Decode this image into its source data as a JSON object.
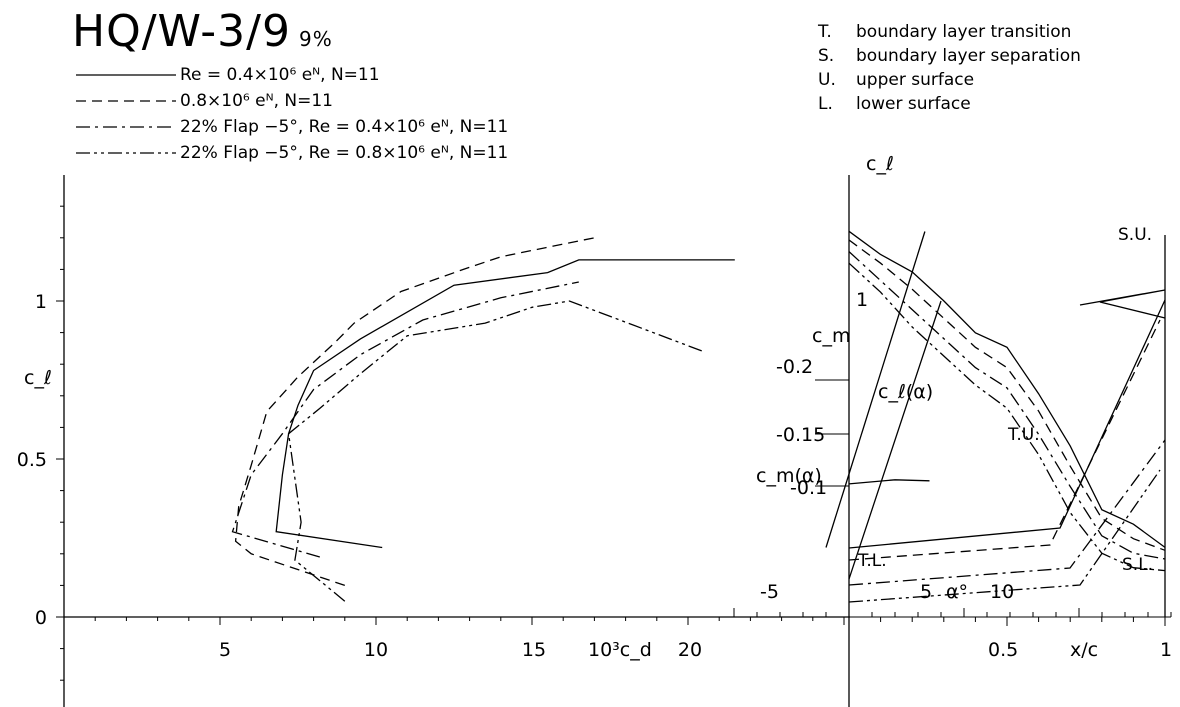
{
  "title": "HQ/W-3/9",
  "title_sub": "9%",
  "legend": [
    {
      "label": "Re = 0.4×10⁶ eᴺ, N=11",
      "dash": ""
    },
    {
      "label": "0.8×10⁶ eᴺ, N=11",
      "dash": "10,6"
    },
    {
      "label": "22% Flap −5°, Re = 0.4×10⁶ eᴺ, N=11",
      "dash": "14,5,3,5"
    },
    {
      "label": "22% Flap −5°, Re = 0.8×10⁶ eᴺ, N=11",
      "dash": "14,4,3,4,3,4"
    }
  ],
  "key": [
    {
      "code": "T.",
      "text": "boundary layer transition"
    },
    {
      "code": "S.",
      "text": "boundary layer separation"
    },
    {
      "code": "U.",
      "text": "upper surface"
    },
    {
      "code": "L.",
      "text": "lower surface"
    }
  ],
  "polar": {
    "xlabel": "10³c_d",
    "ylabel": "c_ℓ",
    "xlim": [
      0,
      25
    ],
    "ylim": [
      -0.25,
      1.35
    ],
    "xticks": [
      "5",
      "10",
      "15",
      "20"
    ],
    "yticks": [
      "0",
      "0.5",
      "1"
    ]
  },
  "lift_axis": {
    "ylabel": "c_ℓ",
    "alpha_label": "α°",
    "alpha_ticks": [
      "-5",
      "5",
      "10"
    ],
    "cm_label": "c_m",
    "cm_ticks": [
      "-0.2",
      "-0.15",
      "-0.1"
    ],
    "cl_alpha_label": "c_ℓ(α)",
    "cm_alpha_label": "c_m(α)",
    "cl_tick": "1"
  },
  "transition": {
    "xlabel": "x/c",
    "xticks": [
      "0.5",
      "1"
    ],
    "annotations": [
      "S.U.",
      "T.U.",
      "T.L.",
      "S.L."
    ]
  },
  "chart_data": [
    {
      "type": "line",
      "title": "HQ/W-3/9 9%",
      "xlabel": "10³c_d",
      "ylabel": "c_ℓ",
      "xlim": [
        0,
        25
      ],
      "ylim": [
        -0.25,
        1.35
      ],
      "series": [
        {
          "name": "Re = 0.4×10⁶ eᴺ, N=11",
          "x": [
            10.2,
            6.8,
            7.0,
            7.2,
            7.5,
            8.0,
            9.5,
            12.5,
            15.5,
            16.5,
            21.5
          ],
          "y": [
            0.22,
            0.27,
            0.45,
            0.58,
            0.67,
            0.78,
            0.88,
            1.05,
            1.09,
            1.13,
            1.13
          ]
        },
        {
          "name": "0.8×10⁶ eᴺ, N=11",
          "x": [
            9.0,
            6.0,
            5.5,
            5.6,
            6.0,
            6.5,
            7.5,
            8.7,
            9.3,
            10.8,
            12.8,
            14.0,
            16.0,
            17.0
          ],
          "y": [
            0.1,
            0.2,
            0.24,
            0.35,
            0.48,
            0.65,
            0.76,
            0.87,
            0.93,
            1.03,
            1.1,
            1.14,
            1.18,
            1.2
          ]
        },
        {
          "name": "22% Flap −5°, Re = 0.4×10⁶ eᴺ, N=11",
          "x": [
            8.2,
            5.4,
            6.0,
            7.0,
            8.0,
            9.5,
            11.5,
            14.0,
            16.5
          ],
          "y": [
            0.19,
            0.27,
            0.45,
            0.58,
            0.72,
            0.83,
            0.94,
            1.01,
            1.06
          ]
        },
        {
          "name": "22% Flap −5°, Re = 0.8×10⁶ eᴺ, N=11",
          "x": [
            9.0,
            7.4,
            7.6,
            7.2,
            8.2,
            9.5,
            11.0,
            13.5,
            15.0,
            16.2,
            20.5
          ],
          "y": [
            0.05,
            0.18,
            0.3,
            0.58,
            0.66,
            0.77,
            0.89,
            0.93,
            0.98,
            1.0,
            0.84
          ]
        }
      ]
    },
    {
      "type": "line",
      "xlabel": "α°",
      "ylabel": "c_ℓ",
      "series": [
        {
          "name": "c_ℓ(α)",
          "x": [
            -1,
            3.3
          ],
          "y": [
            0.22,
            1.22
          ]
        },
        {
          "name": "c_ℓ(α)",
          "x": [
            0,
            4
          ],
          "y": [
            0.12,
            1.0
          ]
        },
        {
          "name": "c_m(α)",
          "x": [
            0,
            2,
            3.5
          ],
          "y": [
            -0.098,
            -0.094,
            -0.095
          ]
        }
      ]
    },
    {
      "type": "line",
      "xlabel": "x/c",
      "ylabel": "α°",
      "series": [
        {
          "name": "Re = 0.4×10⁶ eᴺ, N=11",
          "x": [
            0.0,
            0.1,
            0.2,
            0.3,
            0.4,
            0.5,
            0.6,
            0.7,
            0.8,
            0.9,
            1.0
          ],
          "y": [
            13.3,
            12.5,
            11.9,
            10.9,
            9.8,
            9.3,
            7.7,
            5.9,
            3.7,
            3.2,
            2.4
          ]
        },
        {
          "name": "0.8×10⁶ eᴺ, N=11",
          "x": [
            0.0,
            0.1,
            0.2,
            0.3,
            0.4,
            0.5,
            0.6,
            0.7,
            0.8,
            0.9,
            1.0
          ],
          "y": [
            13.0,
            12.2,
            11.3,
            10.3,
            9.3,
            8.6,
            7.1,
            5.2,
            3.4,
            2.7,
            2.3
          ]
        },
        {
          "name": "22% Flap −5°, Re = 0.4×10⁶ eᴺ, N=11",
          "x": [
            0.0,
            0.1,
            0.2,
            0.3,
            0.4,
            0.5,
            0.6,
            0.7,
            0.8,
            0.9,
            1.0
          ],
          "y": [
            12.6,
            11.6,
            10.6,
            9.6,
            8.6,
            7.9,
            6.3,
            4.5,
            2.8,
            2.2,
            2.0
          ]
        },
        {
          "name": "22% Flap −5°, Re = 0.8×10⁶ eᴺ, N=11",
          "x": [
            0.0,
            0.1,
            0.2,
            0.3,
            0.4,
            0.5,
            0.6,
            0.7,
            0.8,
            0.9,
            1.0
          ],
          "y": [
            12.2,
            11.2,
            10.0,
            9.0,
            8.0,
            7.2,
            5.6,
            3.6,
            2.2,
            1.7,
            1.6
          ]
        }
      ]
    }
  ]
}
